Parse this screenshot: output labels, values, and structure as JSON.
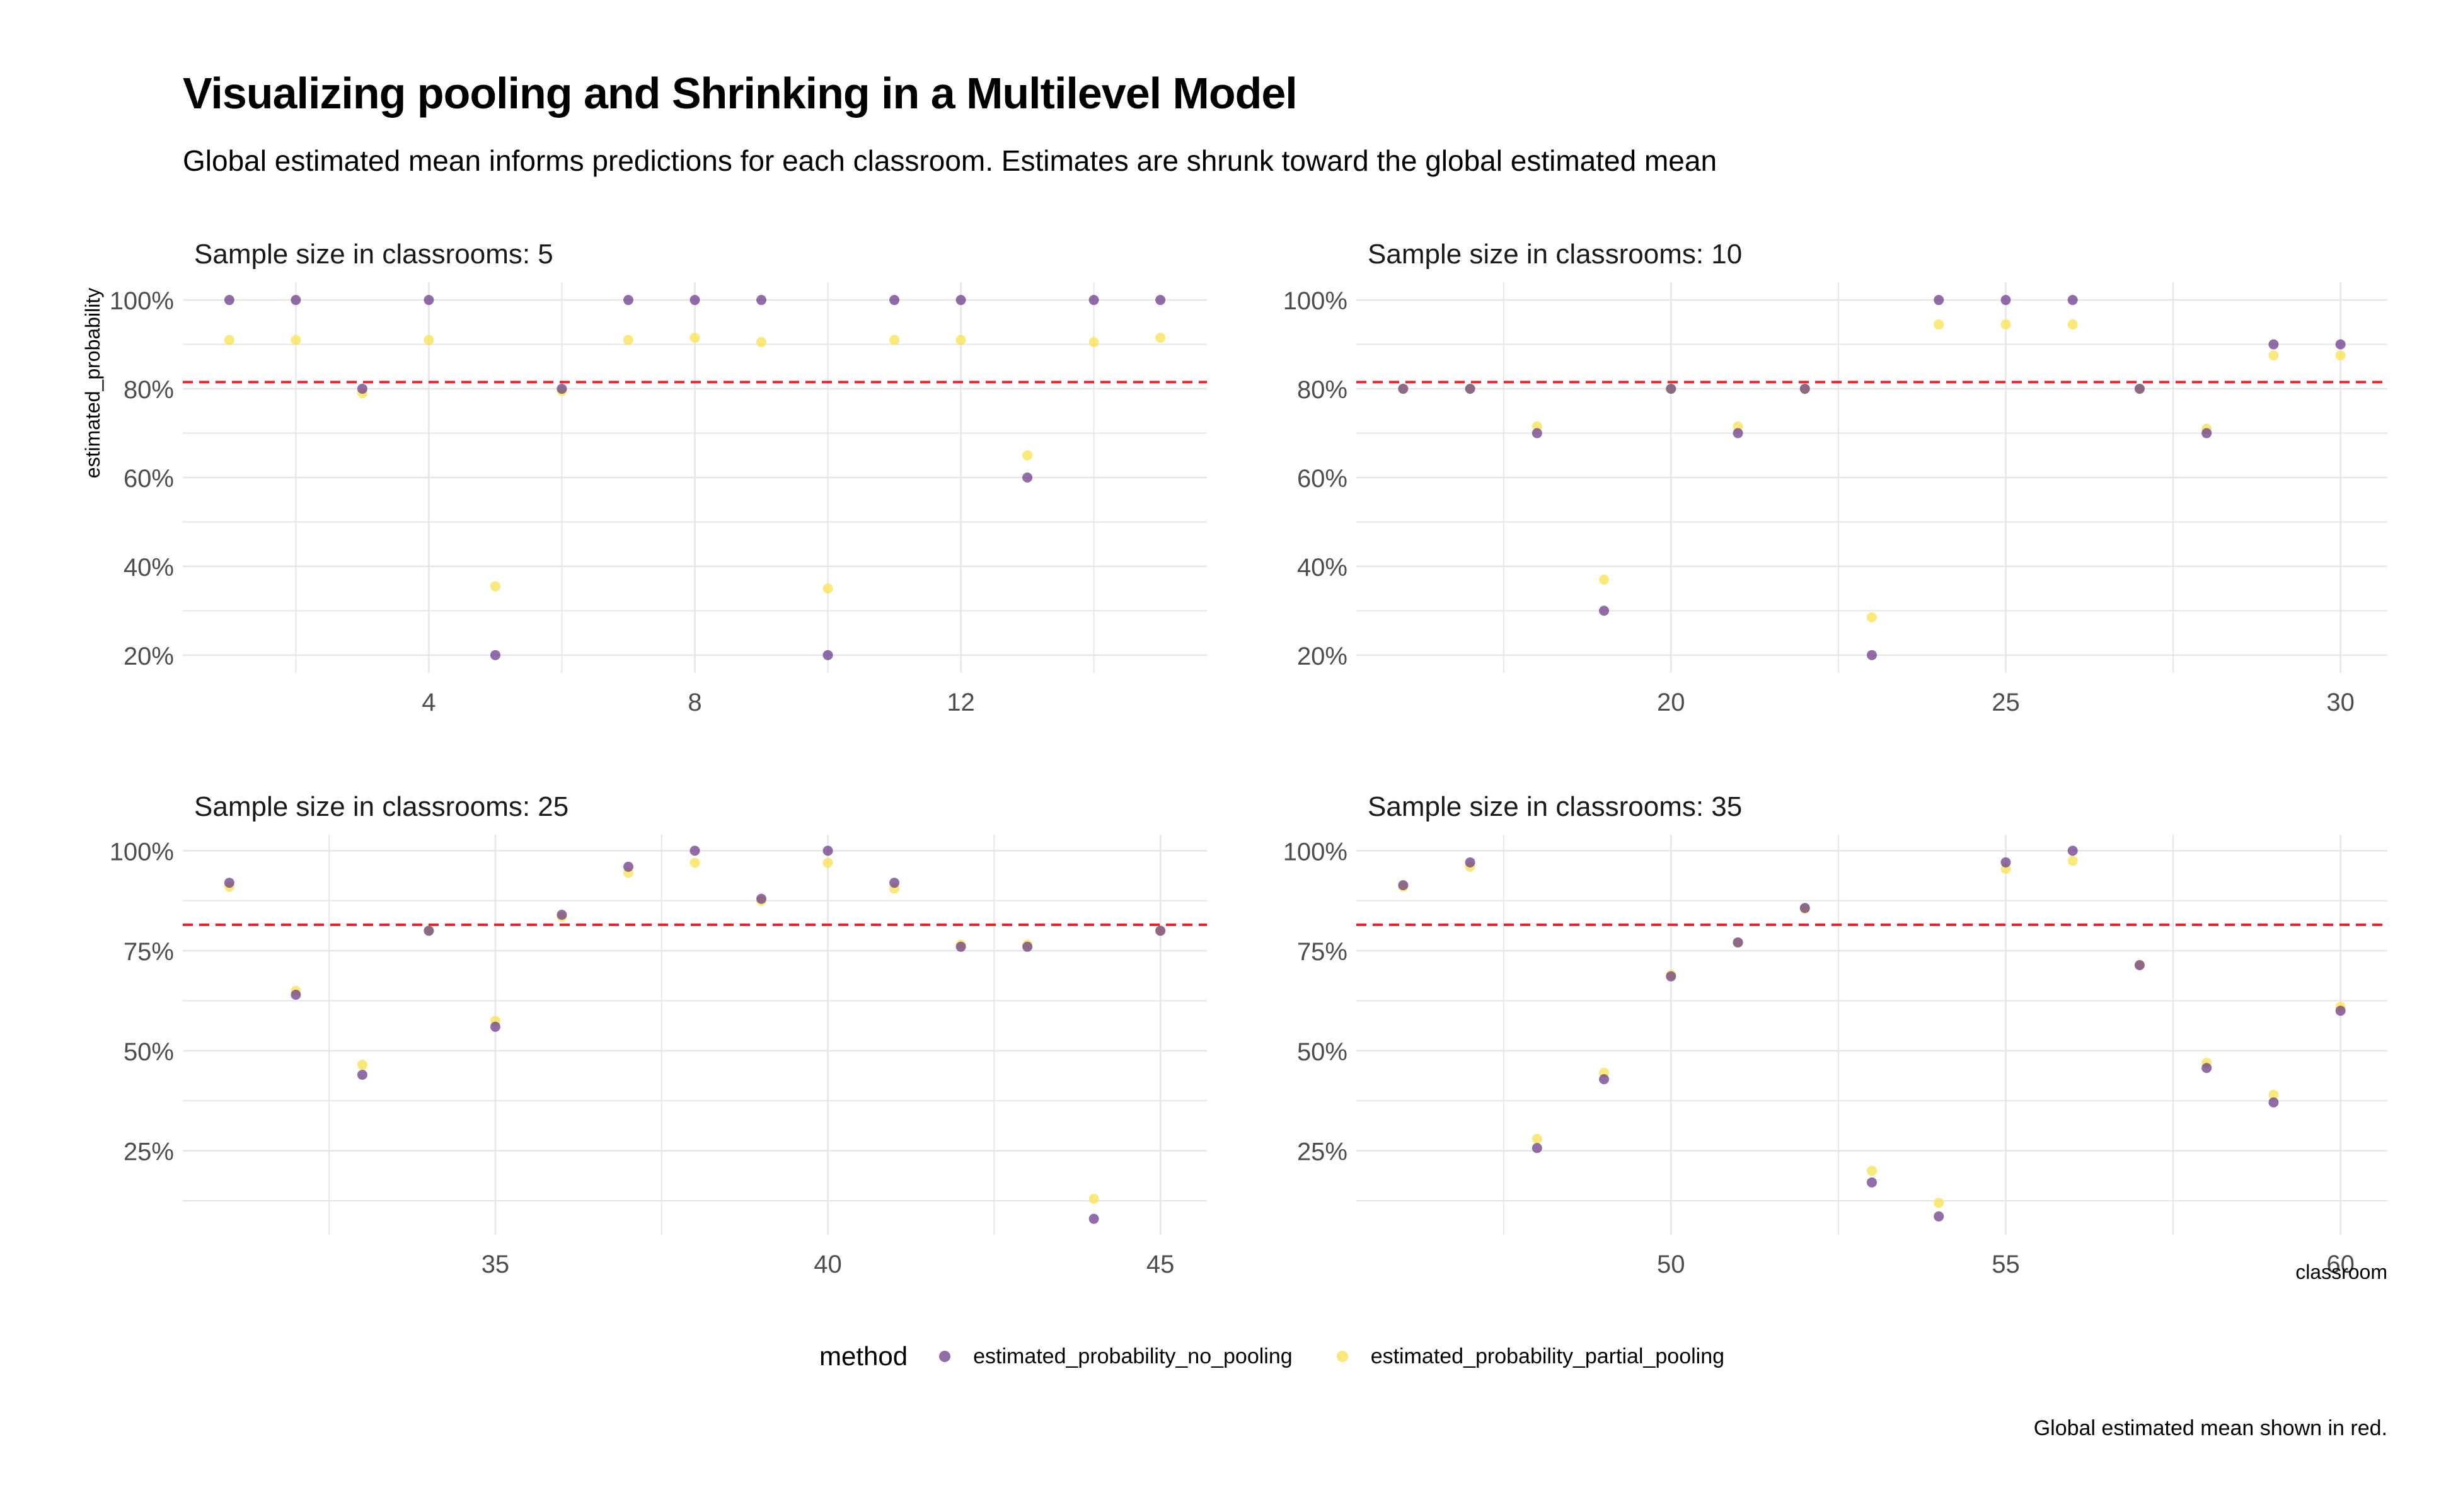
{
  "title": "Visualizing pooling and Shrinking in a Multilevel Model",
  "subtitle": "Global estimated mean informs predictions for each classroom. Estimates are shrunk toward the global estimated mean",
  "caption": "Global estimated mean shown in red.",
  "legend": {
    "title": "method",
    "items": [
      {
        "label": "estimated_probability_no_pooling",
        "color": "#6a3d8a"
      },
      {
        "label": "estimated_probability_partial_pooling",
        "color": "#f7e45a"
      }
    ]
  },
  "colors": {
    "no_pooling": "#6a3d8a",
    "partial_pooling": "#f7e45a",
    "global_mean_line": "#e8202a",
    "grid": "#e6e6e6"
  },
  "chart_data": {
    "type": "scatter",
    "xlabel": "classroom",
    "ylabel": "estimated_probability",
    "global_mean": 0.815,
    "facets": [
      {
        "title": "Sample size in classrooms: 5",
        "xlim": [
          0.3,
          15.7
        ],
        "xticks": [
          4,
          8,
          12
        ],
        "ylim": [
          0.16,
          1.04
        ],
        "yticks": [
          0.2,
          0.4,
          0.6,
          0.8,
          1.0
        ],
        "ytick_labels": [
          "20%",
          "40%",
          "60%",
          "80%",
          "100%"
        ],
        "x": [
          1,
          2,
          3,
          4,
          5,
          6,
          7,
          8,
          9,
          10,
          11,
          12,
          13,
          14,
          15
        ],
        "no_pooling": [
          1.0,
          1.0,
          0.8,
          1.0,
          0.2,
          0.8,
          1.0,
          1.0,
          1.0,
          0.2,
          1.0,
          1.0,
          0.6,
          1.0,
          1.0
        ],
        "partial_pooling": [
          0.91,
          0.91,
          0.79,
          0.91,
          0.355,
          0.795,
          0.91,
          0.915,
          0.905,
          0.35,
          0.91,
          0.91,
          0.65,
          0.905,
          0.915
        ]
      },
      {
        "title": "Sample size in classrooms: 10",
        "xlim": [
          15.3,
          30.7
        ],
        "xticks": [
          20,
          25,
          30
        ],
        "ylim": [
          0.16,
          1.04
        ],
        "yticks": [
          0.2,
          0.4,
          0.6,
          0.8,
          1.0
        ],
        "ytick_labels": [
          "20%",
          "40%",
          "60%",
          "80%",
          "100%"
        ],
        "x": [
          16,
          17,
          18,
          19,
          20,
          21,
          22,
          23,
          24,
          25,
          26,
          27,
          28,
          29,
          30
        ],
        "no_pooling": [
          0.8,
          0.8,
          0.7,
          0.3,
          0.8,
          0.7,
          0.8,
          0.2,
          1.0,
          1.0,
          1.0,
          0.8,
          0.7,
          0.9,
          0.9
        ],
        "partial_pooling": [
          0.8,
          0.8,
          0.715,
          0.37,
          0.8,
          0.715,
          0.8,
          0.285,
          0.945,
          0.945,
          0.945,
          0.8,
          0.71,
          0.875,
          0.875
        ]
      },
      {
        "title": "Sample size in classrooms: 25",
        "xlim": [
          30.3,
          45.7
        ],
        "xticks": [
          35,
          40,
          45
        ],
        "ylim": [
          0.04,
          1.04
        ],
        "yticks": [
          0.25,
          0.5,
          0.75,
          1.0
        ],
        "ytick_labels": [
          "25%",
          "50%",
          "75%",
          "100%"
        ],
        "x": [
          31,
          32,
          33,
          34,
          35,
          36,
          37,
          38,
          39,
          40,
          41,
          42,
          43,
          44,
          45
        ],
        "no_pooling": [
          0.92,
          0.64,
          0.44,
          0.8,
          0.56,
          0.84,
          0.96,
          1.0,
          0.88,
          1.0,
          0.92,
          0.76,
          0.76,
          0.08,
          0.8
        ],
        "partial_pooling": [
          0.91,
          0.65,
          0.465,
          0.8,
          0.575,
          0.835,
          0.945,
          0.97,
          0.875,
          0.97,
          0.905,
          0.765,
          0.765,
          0.13,
          0.8
        ]
      },
      {
        "title": "Sample size in classrooms: 35",
        "xlim": [
          45.3,
          60.7
        ],
        "xticks": [
          50,
          55,
          60
        ],
        "ylim": [
          0.04,
          1.04
        ],
        "yticks": [
          0.25,
          0.5,
          0.75,
          1.0
        ],
        "ytick_labels": [
          "25%",
          "50%",
          "75%",
          "100%"
        ],
        "x": [
          46,
          47,
          48,
          49,
          50,
          51,
          52,
          53,
          54,
          55,
          56,
          57,
          58,
          59,
          60
        ],
        "no_pooling": [
          0.914,
          0.971,
          0.257,
          0.429,
          0.686,
          0.771,
          0.857,
          0.171,
          0.086,
          0.971,
          1.0,
          0.714,
          0.457,
          0.371,
          0.6
        ],
        "partial_pooling": [
          0.91,
          0.96,
          0.28,
          0.445,
          0.69,
          0.77,
          0.855,
          0.2,
          0.12,
          0.955,
          0.975,
          0.715,
          0.47,
          0.39,
          0.61
        ]
      }
    ]
  }
}
